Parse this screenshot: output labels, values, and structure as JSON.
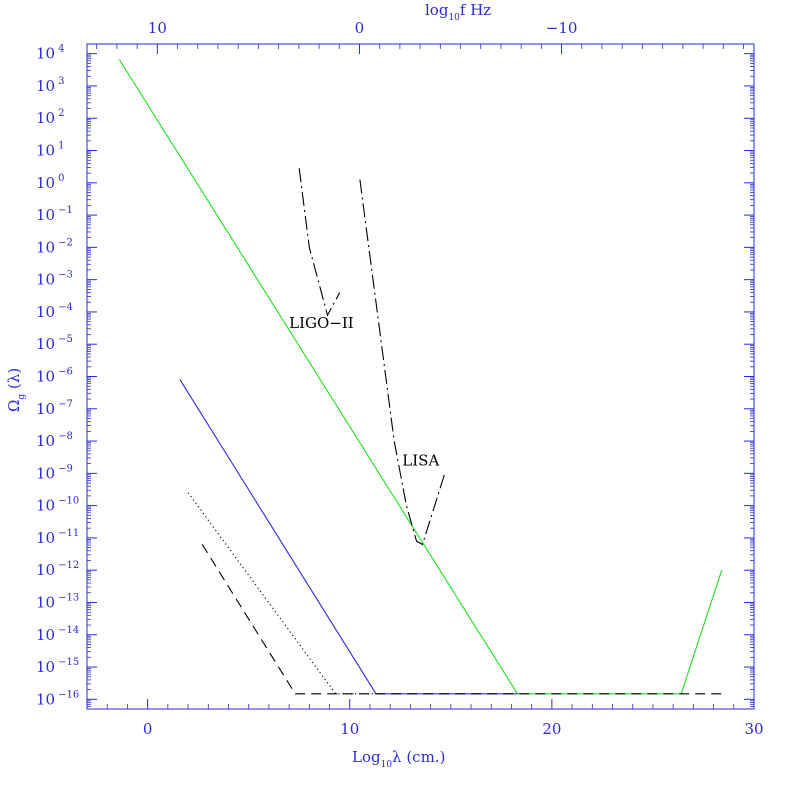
{
  "chart_data": {
    "type": "line",
    "title": "",
    "xlabel": {
      "main": "Log",
      "sub": "10",
      "rest": "λ    (cm.)"
    },
    "ylabel": {
      "main": "Ω",
      "sub": "g",
      "rest": " (λ)"
    },
    "top_axis_label": {
      "main": "log",
      "sub": "10",
      "rest": "f  Hz"
    },
    "xlim": [
      -3.0,
      30.0
    ],
    "ylim": [
      -16.3,
      4.3
    ],
    "y_log_scale": true,
    "bottom_ticks": [
      {
        "value": 0,
        "label": "0"
      },
      {
        "value": 10,
        "label": "10"
      },
      {
        "value": 20,
        "label": "20"
      },
      {
        "value": 30,
        "label": "30"
      }
    ],
    "top_ticks": [
      {
        "log_f": 10,
        "label": "10"
      },
      {
        "log_f": 0,
        "label": "0"
      },
      {
        "log_f": -10,
        "label": "−10"
      }
    ],
    "top_axis_offset": 10.48,
    "y_ticks": [
      {
        "exp": 4,
        "base": "10",
        "sup": "4"
      },
      {
        "exp": 3,
        "base": "10",
        "sup": "3"
      },
      {
        "exp": 2,
        "base": "10",
        "sup": "2"
      },
      {
        "exp": 1,
        "base": "10",
        "sup": "1"
      },
      {
        "exp": 0,
        "base": "10",
        "sup": "0"
      },
      {
        "exp": -1,
        "base": "10",
        "sup": "−1"
      },
      {
        "exp": -2,
        "base": "10",
        "sup": "−2"
      },
      {
        "exp": -3,
        "base": "10",
        "sup": "−3"
      },
      {
        "exp": -4,
        "base": "10",
        "sup": "−4"
      },
      {
        "exp": -5,
        "base": "10",
        "sup": "−5"
      },
      {
        "exp": -6,
        "base": "10",
        "sup": "−6"
      },
      {
        "exp": -7,
        "base": "10",
        "sup": "−7"
      },
      {
        "exp": -8,
        "base": "10",
        "sup": "−8"
      },
      {
        "exp": -9,
        "base": "10",
        "sup": "−9"
      },
      {
        "exp": -10,
        "base": "10",
        "sup": "−10"
      },
      {
        "exp": -11,
        "base": "10",
        "sup": "−11"
      },
      {
        "exp": -12,
        "base": "10",
        "sup": "−12"
      },
      {
        "exp": -13,
        "base": "10",
        "sup": "−13"
      },
      {
        "exp": -14,
        "base": "10",
        "sup": "−14"
      },
      {
        "exp": -15,
        "base": "10",
        "sup": "−15"
      },
      {
        "exp": -16,
        "base": "10",
        "sup": "−16"
      }
    ],
    "series": [
      {
        "color": "#22dd22",
        "dash": "solid",
        "points": [
          [
            -1.4,
            3.82
          ],
          [
            18.3,
            -15.83
          ],
          [
            26.4,
            -15.83
          ],
          [
            28.4,
            -12.0
          ]
        ]
      },
      {
        "color": "#2a2ad8",
        "dash": "solid",
        "points": [
          [
            1.6,
            -6.1
          ],
          [
            11.3,
            -15.83
          ],
          [
            18.3,
            -15.83
          ]
        ]
      },
      {
        "color": "#000000",
        "dash": "dotted",
        "points": [
          [
            2.0,
            -9.6
          ],
          [
            9.3,
            -15.83
          ],
          [
            11.3,
            -15.83
          ]
        ]
      },
      {
        "color": "#000000",
        "dash": "dashed",
        "points": [
          [
            2.7,
            -11.2
          ],
          [
            7.3,
            -15.83
          ],
          [
            9.3,
            -15.83
          ],
          [
            28.4,
            -15.83
          ]
        ]
      },
      {
        "name": "LIGO−II",
        "color": "#000000",
        "dash": "dashdot",
        "points": [
          [
            7.5,
            0.45
          ],
          [
            8.0,
            -2.0
          ],
          [
            8.9,
            -4.1
          ],
          [
            9.5,
            -3.4
          ]
        ]
      },
      {
        "name": "LISA",
        "color": "#000000",
        "dash": "dashdot",
        "points": [
          [
            10.5,
            0.1
          ],
          [
            12.2,
            -8.0
          ],
          [
            12.8,
            -10.0
          ],
          [
            13.3,
            -11.1
          ],
          [
            13.6,
            -11.2
          ],
          [
            14.7,
            -9.0
          ]
        ]
      }
    ],
    "annotations": [
      {
        "text": "LIGO−II",
        "x": 7.0,
        "y": -4.5
      },
      {
        "text": "LISA",
        "x": 12.6,
        "y": -8.75
      }
    ]
  }
}
